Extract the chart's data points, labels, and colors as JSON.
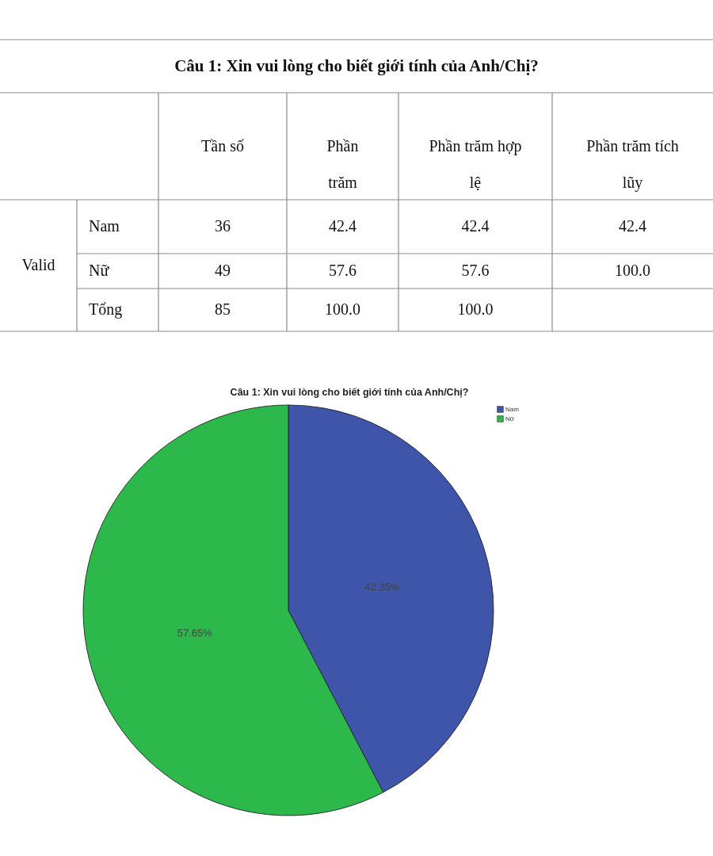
{
  "chart_data": [
    {
      "type": "other",
      "title": "Câu 1: Xin vui lòng cho biết giới tính của Anh/Chị?",
      "ylabel": "Valid",
      "categories": [
        "Tần số",
        "Phần trăm",
        "Phần trăm hợp lệ",
        "Phần trăm tích lũy"
      ],
      "y_categories": [
        "Nam",
        "Nữ",
        "Tổng"
      ],
      "cell_labels": [
        [
          "36",
          "42.4",
          "42.4",
          "42.4"
        ],
        [
          "49",
          "57.6",
          "57.6",
          "100.0"
        ],
        [
          "85",
          "100.0",
          "100.0",
          null
        ]
      ]
    },
    {
      "type": "pie",
      "title": "Câu 1: Xin vui lòng cho biết giới tính của Anh/Chị?",
      "categories": [
        "Nam",
        "Nữ"
      ],
      "values": [
        42.35,
        57.65
      ],
      "colors": [
        "#3f55a9",
        "#2db84b"
      ],
      "value_labels": [
        "42.35%",
        "57.65%"
      ],
      "legend": "top right"
    }
  ]
}
